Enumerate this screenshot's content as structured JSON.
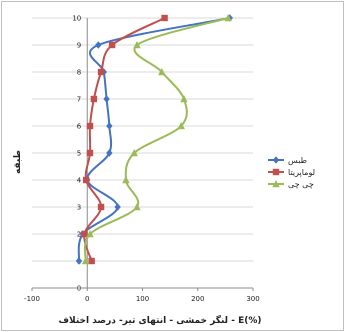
{
  "chart_data": {
    "type": "line",
    "xlabel": "لنگر خمشی - انتهای تیر- درصد اختلاف - E(%)",
    "ylabel": "طبقه",
    "xlim": [
      -100,
      300
    ],
    "ylim": [
      0,
      10
    ],
    "x_ticks": [
      "-100",
      "0",
      "100",
      "200",
      "300"
    ],
    "y_ticks": [
      "0",
      "1",
      "2",
      "3",
      "4",
      "5",
      "6",
      "7",
      "8",
      "9",
      "10"
    ],
    "grid": "horizontal",
    "legend_position": "right",
    "series": [
      {
        "name": "طبس",
        "color": "#4472c4",
        "marker": "diamond",
        "points": [
          [
            -15,
            1
          ],
          [
            -8,
            2
          ],
          [
            55,
            3
          ],
          [
            0,
            4
          ],
          [
            40,
            5
          ],
          [
            40,
            6
          ],
          [
            35,
            7
          ],
          [
            30,
            8
          ],
          [
            20,
            9
          ],
          [
            258,
            10
          ]
        ]
      },
      {
        "name": "لوماپریتا",
        "color": "#c0504d",
        "marker": "square",
        "points": [
          [
            8,
            1
          ],
          [
            -5,
            2
          ],
          [
            25,
            3
          ],
          [
            -2,
            4
          ],
          [
            5,
            5
          ],
          [
            5,
            6
          ],
          [
            12,
            7
          ],
          [
            25,
            8
          ],
          [
            45,
            9
          ],
          [
            140,
            10
          ]
        ]
      },
      {
        "name": "چی چی",
        "color": "#9bbb59",
        "marker": "triangle",
        "points": [
          [
            -3,
            1
          ],
          [
            5,
            2
          ],
          [
            90,
            3
          ],
          [
            70,
            4
          ],
          [
            85,
            5
          ],
          [
            170,
            6
          ],
          [
            175,
            7
          ],
          [
            135,
            8
          ],
          [
            90,
            9
          ],
          [
            255,
            10
          ]
        ]
      }
    ]
  }
}
